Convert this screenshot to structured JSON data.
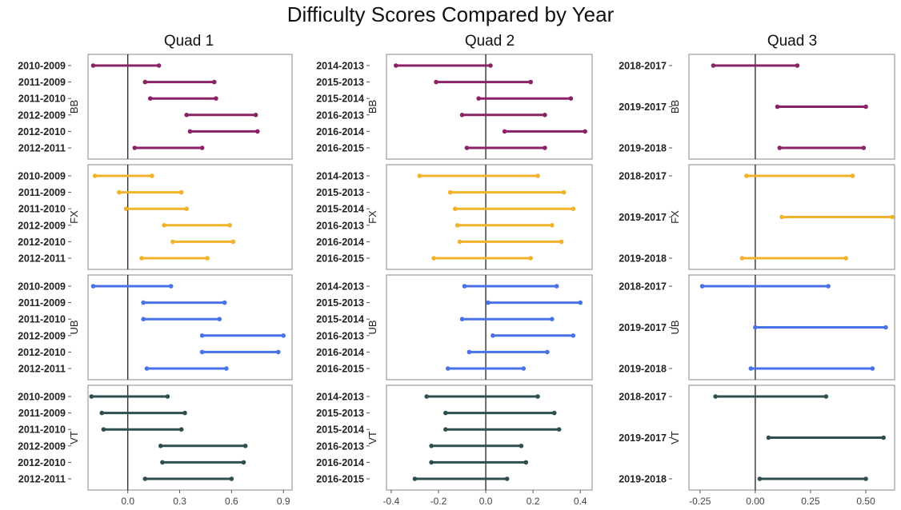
{
  "chart_data": {
    "type": "dumbbell",
    "title": "Difficulty Scores Compared by Year",
    "colors": {
      "BB": "#8B2266",
      "FX": "#F0B32B",
      "UB": "#4A72E8",
      "VT": "#2F4F4F"
    },
    "strips": [
      "BB",
      "FX",
      "UB",
      "VT"
    ],
    "quads": [
      {
        "title": "Quad 1",
        "xlim": [
          -0.23,
          0.95
        ],
        "xticks": [
          0.0,
          0.3,
          0.6,
          0.9
        ],
        "xtick_labels": [
          "0.0",
          "0.3",
          "0.6",
          "0.9"
        ],
        "rows": [
          "2010-2009",
          "2011-2009",
          "2011-2010",
          "2012-2009",
          "2012-2010",
          "2012-2011"
        ],
        "panels": {
          "BB": [
            [
              -0.2,
              0.18
            ],
            [
              0.1,
              0.5
            ],
            [
              0.13,
              0.51
            ],
            [
              0.34,
              0.74
            ],
            [
              0.36,
              0.75
            ],
            [
              0.04,
              0.43
            ]
          ],
          "FX": [
            [
              -0.19,
              0.14
            ],
            [
              -0.05,
              0.31
            ],
            [
              -0.01,
              0.34
            ],
            [
              0.21,
              0.59
            ],
            [
              0.26,
              0.61
            ],
            [
              0.08,
              0.46
            ]
          ],
          "UB": [
            [
              -0.2,
              0.25
            ],
            [
              0.09,
              0.56
            ],
            [
              0.09,
              0.53
            ],
            [
              0.43,
              0.9
            ],
            [
              0.43,
              0.87
            ],
            [
              0.11,
              0.57
            ]
          ],
          "VT": [
            [
              -0.21,
              0.23
            ],
            [
              -0.15,
              0.33
            ],
            [
              -0.14,
              0.31
            ],
            [
              0.19,
              0.68
            ],
            [
              0.2,
              0.67
            ],
            [
              0.1,
              0.6
            ]
          ]
        }
      },
      {
        "title": "Quad 2",
        "xlim": [
          -0.42,
          0.45
        ],
        "xticks": [
          -0.4,
          -0.2,
          0.0,
          0.2,
          0.4
        ],
        "xtick_labels": [
          "-0.4",
          "-0.2",
          "0.0",
          "0.2",
          "0.4"
        ],
        "rows": [
          "2014-2013",
          "2015-2013",
          "2015-2014",
          "2016-2013",
          "2016-2014",
          "2016-2015"
        ],
        "panels": {
          "BB": [
            [
              -0.38,
              0.02
            ],
            [
              -0.21,
              0.19
            ],
            [
              -0.03,
              0.36
            ],
            [
              -0.1,
              0.25
            ],
            [
              0.08,
              0.42
            ],
            [
              -0.08,
              0.25
            ]
          ],
          "FX": [
            [
              -0.28,
              0.22
            ],
            [
              -0.15,
              0.33
            ],
            [
              -0.13,
              0.37
            ],
            [
              -0.12,
              0.28
            ],
            [
              -0.11,
              0.32
            ],
            [
              -0.22,
              0.19
            ]
          ],
          "UB": [
            [
              -0.09,
              0.3
            ],
            [
              0.01,
              0.4
            ],
            [
              -0.1,
              0.28
            ],
            [
              0.03,
              0.37
            ],
            [
              -0.07,
              0.26
            ],
            [
              -0.16,
              0.16
            ]
          ],
          "VT": [
            [
              -0.25,
              0.22
            ],
            [
              -0.17,
              0.29
            ],
            [
              -0.17,
              0.31
            ],
            [
              -0.23,
              0.15
            ],
            [
              -0.23,
              0.17
            ],
            [
              -0.3,
              0.09
            ]
          ]
        }
      },
      {
        "title": "Quad 3",
        "xlim": [
          -0.3,
          0.63
        ],
        "xticks": [
          -0.25,
          0.0,
          0.25,
          0.5
        ],
        "xtick_labels": [
          "-0.25",
          "0.00",
          "0.25",
          "0.50"
        ],
        "rows": [
          "2018-2017",
          "2019-2017",
          "2019-2018"
        ],
        "panels": {
          "BB": [
            [
              -0.19,
              0.19
            ],
            [
              0.1,
              0.5
            ],
            [
              0.11,
              0.49
            ]
          ],
          "FX": [
            [
              -0.04,
              0.44
            ],
            [
              0.12,
              0.62
            ],
            [
              -0.06,
              0.41
            ]
          ],
          "UB": [
            [
              -0.24,
              0.33
            ],
            [
              0.0,
              0.59
            ],
            [
              -0.02,
              0.53
            ]
          ],
          "VT": [
            [
              -0.18,
              0.32
            ],
            [
              0.06,
              0.58
            ],
            [
              0.02,
              0.5
            ]
          ]
        }
      }
    ]
  }
}
